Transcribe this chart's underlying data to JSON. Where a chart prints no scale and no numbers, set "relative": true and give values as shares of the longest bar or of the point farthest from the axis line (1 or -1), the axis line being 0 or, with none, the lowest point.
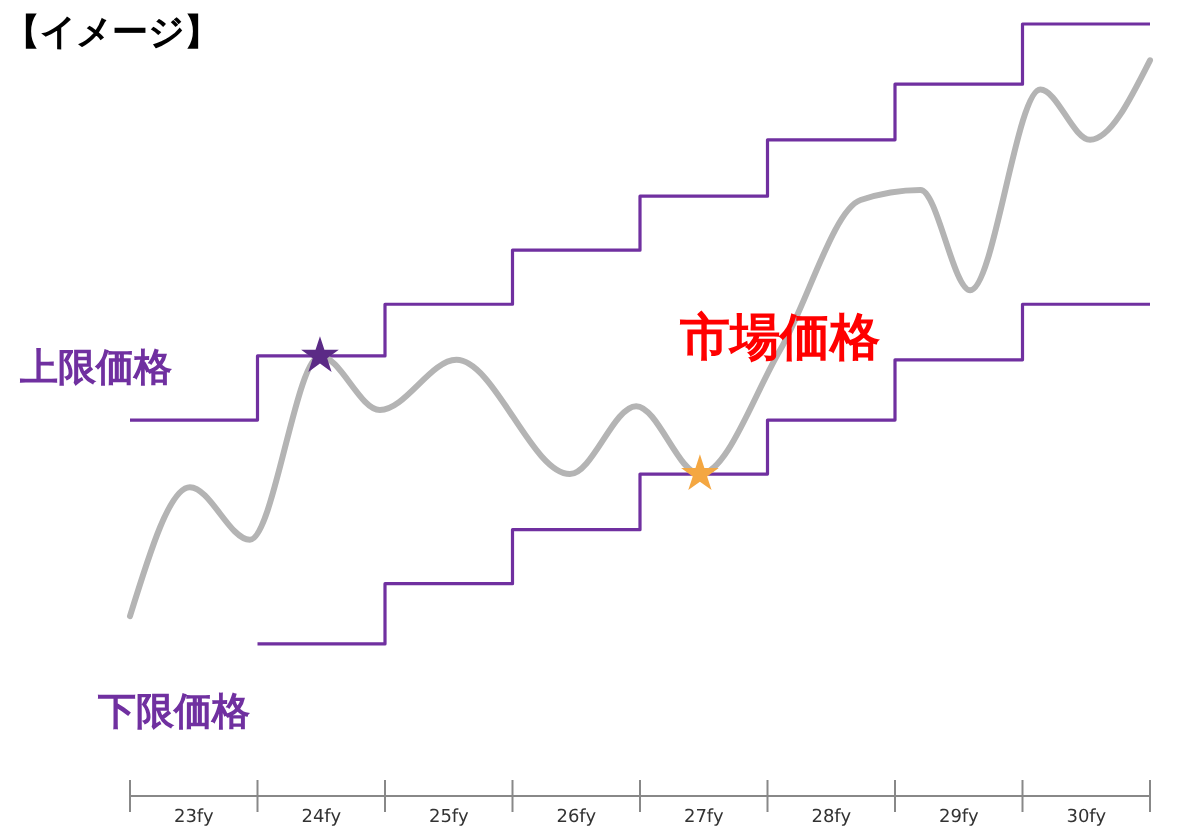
{
  "chart_data": {
    "type": "line",
    "title": "【イメージ】",
    "relative": true,
    "xlim": [
      23,
      31
    ],
    "xticks": [
      {
        "value": 23,
        "label": null
      },
      {
        "value": 23.5,
        "label": "23fy"
      },
      {
        "value": 24,
        "label": null
      },
      {
        "value": 24.5,
        "label": "24fy"
      },
      {
        "value": 25,
        "label": null
      },
      {
        "value": 25.5,
        "label": "25fy"
      },
      {
        "value": 26,
        "label": null
      },
      {
        "value": 26.5,
        "label": "26fy"
      },
      {
        "value": 27,
        "label": null
      },
      {
        "value": 27.5,
        "label": "27fy"
      },
      {
        "value": 28,
        "label": null
      },
      {
        "value": 28.5,
        "label": "28fy"
      },
      {
        "value": 29,
        "label": null
      },
      {
        "value": 29.5,
        "label": "29fy"
      },
      {
        "value": 30,
        "label": null
      },
      {
        "value": 30.5,
        "label": "30fy"
      },
      {
        "value": 31,
        "label": null
      }
    ],
    "series": [
      {
        "type": "step",
        "name": "上限価格",
        "color": "#7030a0",
        "x": [
          23,
          24,
          25,
          26,
          27,
          28,
          29,
          30,
          31
        ],
        "values": [
          0.487,
          0.57,
          0.637,
          0.707,
          0.777,
          0.85,
          0.922,
          1,
          1
        ]
      },
      {
        "type": "step",
        "name": "下限価格",
        "color": "#7030a0",
        "x": [
          24,
          25,
          26,
          27,
          28,
          29,
          30,
          31
        ],
        "values": [
          0.197,
          0.275,
          0.345,
          0.417,
          0.487,
          0.565,
          0.637,
          0.637
        ]
      },
      {
        "type": "line",
        "name": "市場価格",
        "color": "#b4b4b4",
        "x": [
          23,
          23.47,
          23.94,
          24.49,
          24.96,
          25.56,
          26.45,
          26.97,
          27.47,
          28.1,
          28.73,
          29.2,
          29.59,
          30.14,
          30.53,
          31
        ],
        "values": [
          0.233,
          0.4,
          0.332,
          0.57,
          0.5,
          0.565,
          0.417,
          0.505,
          0.417,
          0.578,
          0.772,
          0.785,
          0.655,
          0.915,
          0.85,
          0.953
        ]
      },
      {
        "type": "scatter",
        "marker": "star",
        "color": "#5b2a86",
        "x": [
          24.49
        ],
        "values": [
          0.57
        ]
      },
      {
        "type": "scatter",
        "marker": "star",
        "color": "#f4a742",
        "x": [
          27.47
        ],
        "values": [
          0.417
        ]
      }
    ]
  }
}
